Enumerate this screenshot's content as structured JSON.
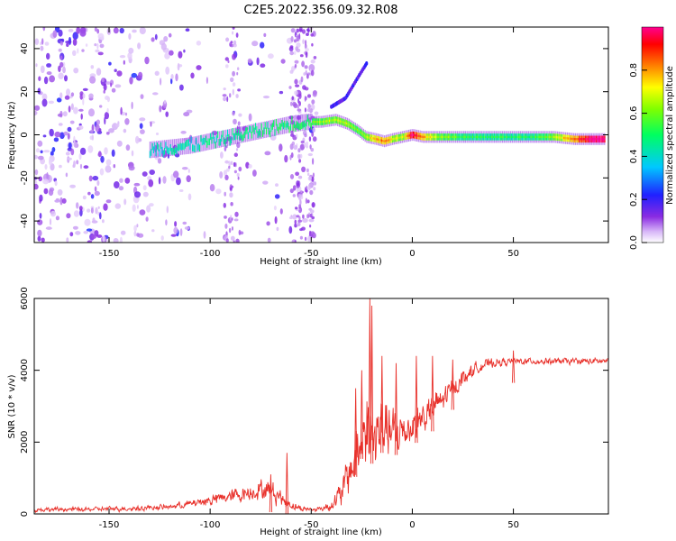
{
  "title": "C2E5.2022.356.09.32.R08",
  "chart_data": [
    {
      "type": "heatmap",
      "xlabel": "Height of straight line (km)",
      "ylabel": "Frequency (Hz)",
      "xlim": [
        -187,
        97
      ],
      "ylim": [
        -50,
        50
      ],
      "xticks": [
        -150,
        -100,
        -50,
        0,
        50
      ],
      "xtick_labels": [
        "-150",
        "-100",
        "-50",
        "0",
        "50"
      ],
      "yticks": [
        -40,
        -20,
        0,
        20,
        40
      ],
      "ytick_labels": [
        "-40",
        "-20",
        "0",
        "20",
        "40"
      ],
      "ridge": {
        "x": [
          -130,
          -120,
          -110,
          -100,
          -90,
          -80,
          -70,
          -60,
          -52,
          -45,
          -38,
          -32,
          -27,
          -23,
          -18,
          -14,
          -10,
          -5,
          0,
          5,
          10,
          20,
          30,
          40,
          50,
          60,
          70,
          80,
          90,
          95
        ],
        "freq": [
          -7,
          -6,
          -5,
          -3,
          -1,
          1,
          3,
          5,
          6,
          6,
          7,
          5,
          2,
          -1,
          -2,
          -3,
          -2,
          -1,
          0,
          -1,
          -1,
          -1,
          -1,
          -1,
          -1,
          -1,
          -1,
          -2,
          -2,
          -2
        ],
        "amplitude": [
          0.38,
          0.4,
          0.42,
          0.44,
          0.45,
          0.46,
          0.48,
          0.5,
          0.5,
          0.55,
          0.6,
          0.55,
          0.55,
          0.6,
          0.7,
          0.78,
          0.65,
          0.6,
          0.95,
          0.72,
          0.62,
          0.5,
          0.45,
          0.45,
          0.45,
          0.46,
          0.55,
          0.8,
          0.98,
          0.95
        ]
      },
      "secondary_streak": {
        "x": [
          -40,
          -33,
          -26,
          -22
        ],
        "freq": [
          13,
          17,
          28,
          34
        ]
      },
      "colorbar": {
        "label": "Normalized spectral amplitude",
        "range": [
          0,
          1
        ],
        "ticks": [
          0.0,
          0.2,
          0.4,
          0.6,
          0.8
        ],
        "tick_labels": [
          "0.0",
          "0.2",
          "0.4",
          "0.6",
          "0.8"
        ]
      }
    },
    {
      "type": "line",
      "series_name": "SNR",
      "color": "#e8302a",
      "xlabel": "Height of straight line (km)",
      "ylabel": "SNR (10 * v/v)",
      "xlim": [
        -187,
        97
      ],
      "ylim": [
        0,
        6000
      ],
      "xticks": [
        -150,
        -100,
        -50,
        0,
        50
      ],
      "xtick_labels": [
        "-150",
        "-100",
        "-50",
        "0",
        "50"
      ],
      "yticks": [
        0,
        2000,
        4000,
        6000
      ],
      "ytick_labels": [
        "0",
        "2000",
        "4000",
        "6000"
      ],
      "envelope": {
        "x": [
          -187,
          -160,
          -140,
          -120,
          -110,
          -100,
          -90,
          -80,
          -75,
          -70,
          -66,
          -62,
          -55,
          -50,
          -45,
          -40,
          -35,
          -30,
          -27,
          -24,
          -22,
          -20,
          -18,
          -15,
          -12,
          -10,
          -5,
          0,
          5,
          10,
          15,
          20,
          25,
          30,
          35,
          40,
          50,
          60,
          70,
          80,
          97
        ],
        "mean": [
          120,
          130,
          150,
          200,
          280,
          380,
          500,
          600,
          700,
          650,
          500,
          300,
          150,
          120,
          150,
          250,
          600,
          1300,
          1800,
          2300,
          2600,
          2000,
          2200,
          2300,
          2400,
          2200,
          2300,
          2500,
          2700,
          2900,
          3200,
          3500,
          3800,
          4000,
          4150,
          4200,
          4250,
          4250,
          4250,
          4250,
          4250
        ],
        "spread": [
          80,
          80,
          90,
          100,
          150,
          200,
          250,
          300,
          350,
          400,
          300,
          200,
          100,
          80,
          100,
          200,
          500,
          900,
          1200,
          1300,
          1400,
          1300,
          1200,
          1100,
          1000,
          900,
          800,
          700,
          650,
          600,
          500,
          400,
          300,
          250,
          200,
          150,
          120,
          120,
          120,
          120,
          120
        ]
      },
      "peaks": [
        {
          "x": -70,
          "y": 1100
        },
        {
          "x": -62,
          "y": 1700
        },
        {
          "x": -28,
          "y": 3500
        },
        {
          "x": -25,
          "y": 4000
        },
        {
          "x": -21,
          "y": 6000
        },
        {
          "x": -20,
          "y": 5800
        },
        {
          "x": -15,
          "y": 4400
        },
        {
          "x": -8,
          "y": 4200
        },
        {
          "x": 2,
          "y": 4400
        },
        {
          "x": 10,
          "y": 4400
        },
        {
          "x": 20,
          "y": 4300
        },
        {
          "x": 50,
          "y": 4550
        }
      ]
    }
  ]
}
